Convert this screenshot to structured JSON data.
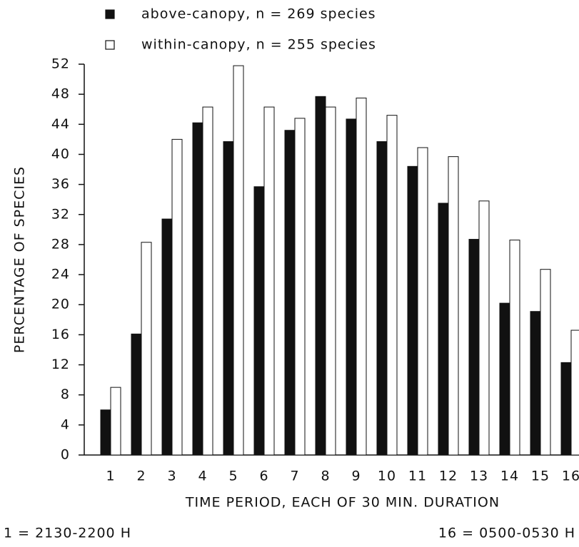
{
  "chart_data": {
    "type": "bar",
    "xlabel": "TIME PERIOD, EACH OF 30 MIN. DURATION",
    "ylabel": "PERCENTAGE OF SPECIES",
    "notes": [
      "1 = 2130-2200 H",
      "16 = 0500-0530 H"
    ],
    "categories": [
      "1",
      "2",
      "3",
      "4",
      "5",
      "6",
      "7",
      "8",
      "9",
      "10",
      "11",
      "12",
      "13",
      "14",
      "15",
      "16"
    ],
    "series": [
      {
        "name": "above-canopy, n = 269 species",
        "color": "#111111",
        "values": [
          6.0,
          16.1,
          31.4,
          44.2,
          41.7,
          35.7,
          43.2,
          47.7,
          44.7,
          41.7,
          38.4,
          33.5,
          28.7,
          20.2,
          19.1,
          12.3
        ]
      },
      {
        "name": "within-canopy, n = 255 species",
        "color": "#ffffff",
        "values": [
          9.0,
          28.3,
          42.0,
          46.3,
          51.8,
          46.3,
          44.8,
          46.3,
          47.5,
          45.2,
          40.9,
          39.7,
          33.8,
          28.6,
          24.7,
          16.6
        ]
      }
    ],
    "ylim": [
      0,
      52
    ],
    "yticks": [
      0,
      4,
      8,
      12,
      16,
      20,
      24,
      28,
      32,
      36,
      40,
      44,
      48,
      52
    ]
  }
}
